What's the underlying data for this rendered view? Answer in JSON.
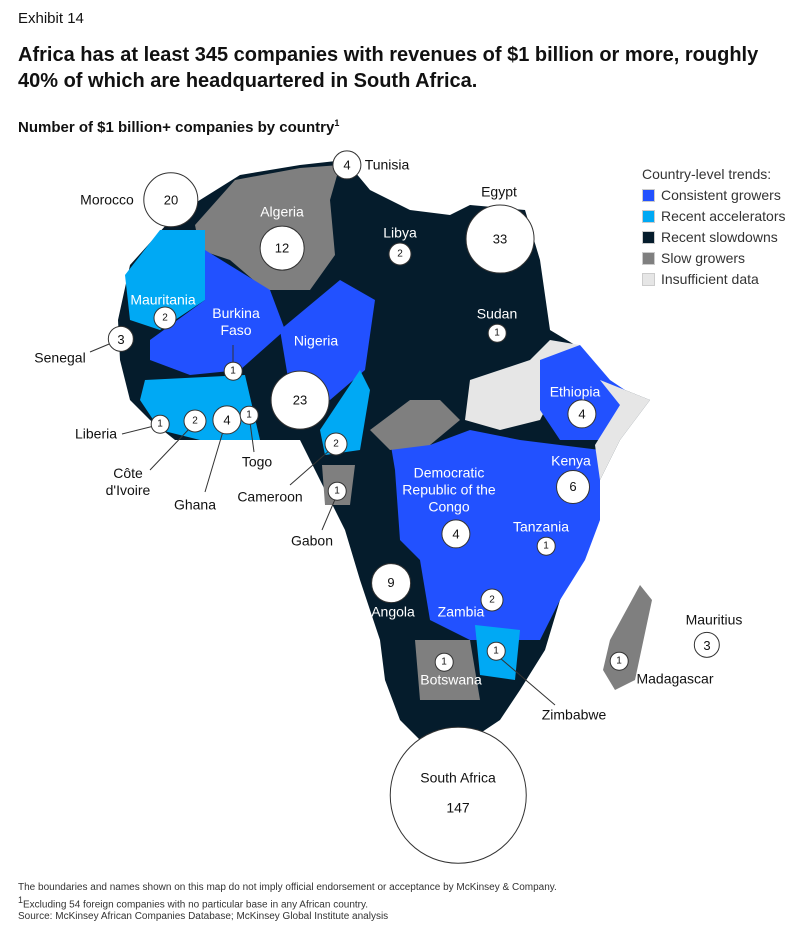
{
  "exhibit": "Exhibit 14",
  "title": "Africa has at least 345 companies with revenues of $1 billion or more, roughly 40% of which are headquartered in South Africa.",
  "subtitle": "Number of $1 billion+ companies by country",
  "subtitle_note": "1",
  "legend": {
    "title": "Country-level trends:",
    "items": [
      {
        "label": "Consistent growers",
        "color": "#2251ff"
      },
      {
        "label": "Recent accelerators",
        "color": "#00a9f4"
      },
      {
        "label": "Recent slowdowns",
        "color": "#051c2c"
      },
      {
        "label": "Slow growers",
        "color": "#7f7f7f"
      },
      {
        "label": "Insufficient data",
        "color": "#e6e6e6"
      }
    ]
  },
  "countries": [
    {
      "name": "Morocco",
      "count": 20
    },
    {
      "name": "Algeria",
      "count": 12
    },
    {
      "name": "Tunisia",
      "count": 4
    },
    {
      "name": "Libya",
      "count": 2
    },
    {
      "name": "Egypt",
      "count": 33
    },
    {
      "name": "Mauritania",
      "count": 2
    },
    {
      "name": "Senegal",
      "count": 3
    },
    {
      "name": "Burkina Faso",
      "count": 1
    },
    {
      "name": "Nigeria",
      "count": 23
    },
    {
      "name": "Sudan",
      "count": 1
    },
    {
      "name": "Ethiopia",
      "count": 4
    },
    {
      "name": "Liberia",
      "count": 1
    },
    {
      "name": "Côte d'Ivoire",
      "count": 2
    },
    {
      "name": "Ghana",
      "count": 4
    },
    {
      "name": "Togo",
      "count": 1
    },
    {
      "name": "Cameroon",
      "count": 2
    },
    {
      "name": "Gabon",
      "count": 1
    },
    {
      "name": "Kenya",
      "count": 6
    },
    {
      "name": "Democratic Republic of the Congo",
      "count": 4
    },
    {
      "name": "Tanzania",
      "count": 1
    },
    {
      "name": "Angola",
      "count": 9
    },
    {
      "name": "Zambia",
      "count": 2
    },
    {
      "name": "Zimbabwe",
      "count": 1
    },
    {
      "name": "Botswana",
      "count": 1
    },
    {
      "name": "South Africa",
      "count": 147
    },
    {
      "name": "Mauritius",
      "count": 3
    },
    {
      "name": "Madagascar",
      "count": 1
    }
  ],
  "footnotes": [
    {
      "text": "The boundaries and names shown on this map do not imply official endorsement or acceptance by McKinsey & Company."
    },
    {
      "marker": "1",
      "text": "Excluding 54 foreign companies with no particular base in any African country."
    },
    {
      "text": "Source: McKinsey African Companies Database; McKinsey Global Institute analysis"
    }
  ]
}
